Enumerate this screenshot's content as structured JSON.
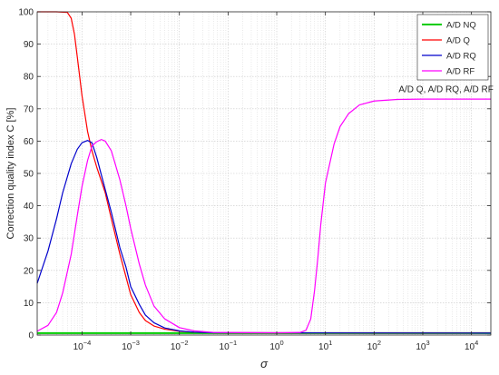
{
  "chart_data": {
    "type": "line",
    "xlabel": "σ",
    "ylabel": "Correction quality index C [%]",
    "xscale": "log",
    "xlim": [
      1.2e-05,
      25000
    ],
    "ylim": [
      0,
      100
    ],
    "grid": true,
    "legend_position": "top-right",
    "x_tick_labels": [
      {
        "x": 0.0001,
        "base": "10",
        "exp": "−4"
      },
      {
        "x": 0.001,
        "base": "10",
        "exp": "−3"
      },
      {
        "x": 0.01,
        "base": "10",
        "exp": "−2"
      },
      {
        "x": 0.1,
        "base": "10",
        "exp": "−1"
      },
      {
        "x": 1,
        "base": "10",
        "exp": "0"
      },
      {
        "x": 10,
        "base": "10",
        "exp": "1"
      },
      {
        "x": 100,
        "base": "10",
        "exp": "2"
      },
      {
        "x": 1000,
        "base": "10",
        "exp": "3"
      },
      {
        "x": 10000,
        "base": "10",
        "exp": "4"
      }
    ],
    "y_ticks": [
      0,
      10,
      20,
      30,
      40,
      50,
      60,
      70,
      80,
      90,
      100
    ],
    "annotation": {
      "text": "A/D Q, A/D RQ, A/D RF",
      "x": 3000,
      "y": 76
    },
    "series": [
      {
        "name": "A/D NQ",
        "color": "#00cc00",
        "points": [
          [
            1.2e-05,
            0.6
          ],
          [
            25000,
            0.6
          ]
        ]
      },
      {
        "name": "A/D Q",
        "color": "#ff0000",
        "points": [
          [
            1.2e-05,
            100
          ],
          [
            3e-05,
            100
          ],
          [
            5e-05,
            99.8
          ],
          [
            6e-05,
            98
          ],
          [
            7e-05,
            93
          ],
          [
            8e-05,
            86
          ],
          [
            0.0001,
            74
          ],
          [
            0.00013,
            63
          ],
          [
            0.00016,
            57
          ],
          [
            0.0002,
            52
          ],
          [
            0.0003,
            44
          ],
          [
            0.0004,
            36
          ],
          [
            0.0006,
            25
          ],
          [
            0.0008,
            18
          ],
          [
            0.001,
            12.5
          ],
          [
            0.0015,
            7
          ],
          [
            0.002,
            4.5
          ],
          [
            0.003,
            2.8
          ],
          [
            0.005,
            1.8
          ],
          [
            0.01,
            1.2
          ],
          [
            0.02,
            0.9
          ],
          [
            0.05,
            0.7
          ],
          [
            25000,
            0.6
          ]
        ]
      },
      {
        "name": "A/D RQ",
        "color": "#0000cc",
        "points": [
          [
            1.2e-05,
            16
          ],
          [
            2e-05,
            26
          ],
          [
            3e-05,
            36
          ],
          [
            4e-05,
            44
          ],
          [
            6e-05,
            53
          ],
          [
            8e-05,
            57.5
          ],
          [
            0.0001,
            59.5
          ],
          [
            0.00013,
            60.2
          ],
          [
            0.00016,
            59.5
          ],
          [
            0.0002,
            55
          ],
          [
            0.0003,
            45
          ],
          [
            0.0004,
            38
          ],
          [
            0.0006,
            27
          ],
          [
            0.0008,
            21
          ],
          [
            0.001,
            15
          ],
          [
            0.0015,
            9.5
          ],
          [
            0.002,
            6.2
          ],
          [
            0.003,
            3.8
          ],
          [
            0.005,
            2.2
          ],
          [
            0.01,
            1.3
          ],
          [
            0.02,
            0.9
          ],
          [
            0.05,
            0.7
          ],
          [
            25000,
            0.6
          ]
        ]
      },
      {
        "name": "A/D RF",
        "color": "#ff00ff",
        "points": [
          [
            1.2e-05,
            1.2
          ],
          [
            2e-05,
            3
          ],
          [
            3e-05,
            7
          ],
          [
            4e-05,
            13
          ],
          [
            6e-05,
            25
          ],
          [
            8e-05,
            37
          ],
          [
            0.0001,
            46
          ],
          [
            0.00013,
            54
          ],
          [
            0.00016,
            58.5
          ],
          [
            0.0002,
            59.8
          ],
          [
            0.00025,
            60.5
          ],
          [
            0.0003,
            60
          ],
          [
            0.0004,
            57
          ],
          [
            0.0006,
            48
          ],
          [
            0.0008,
            40
          ],
          [
            0.001,
            33
          ],
          [
            0.0015,
            22
          ],
          [
            0.002,
            15.5
          ],
          [
            0.003,
            9
          ],
          [
            0.005,
            5
          ],
          [
            0.01,
            2.3
          ],
          [
            0.02,
            1.3
          ],
          [
            0.05,
            0.8
          ],
          [
            1,
            0.7
          ],
          [
            3,
            0.8
          ],
          [
            4,
            1.5
          ],
          [
            5,
            5
          ],
          [
            6,
            14
          ],
          [
            7,
            24
          ],
          [
            8,
            34
          ],
          [
            10,
            47
          ],
          [
            15,
            59
          ],
          [
            20,
            64.5
          ],
          [
            30,
            68.5
          ],
          [
            50,
            71.2
          ],
          [
            100,
            72.4
          ],
          [
            300,
            72.9
          ],
          [
            1000,
            73
          ],
          [
            25000,
            73
          ]
        ]
      }
    ]
  }
}
